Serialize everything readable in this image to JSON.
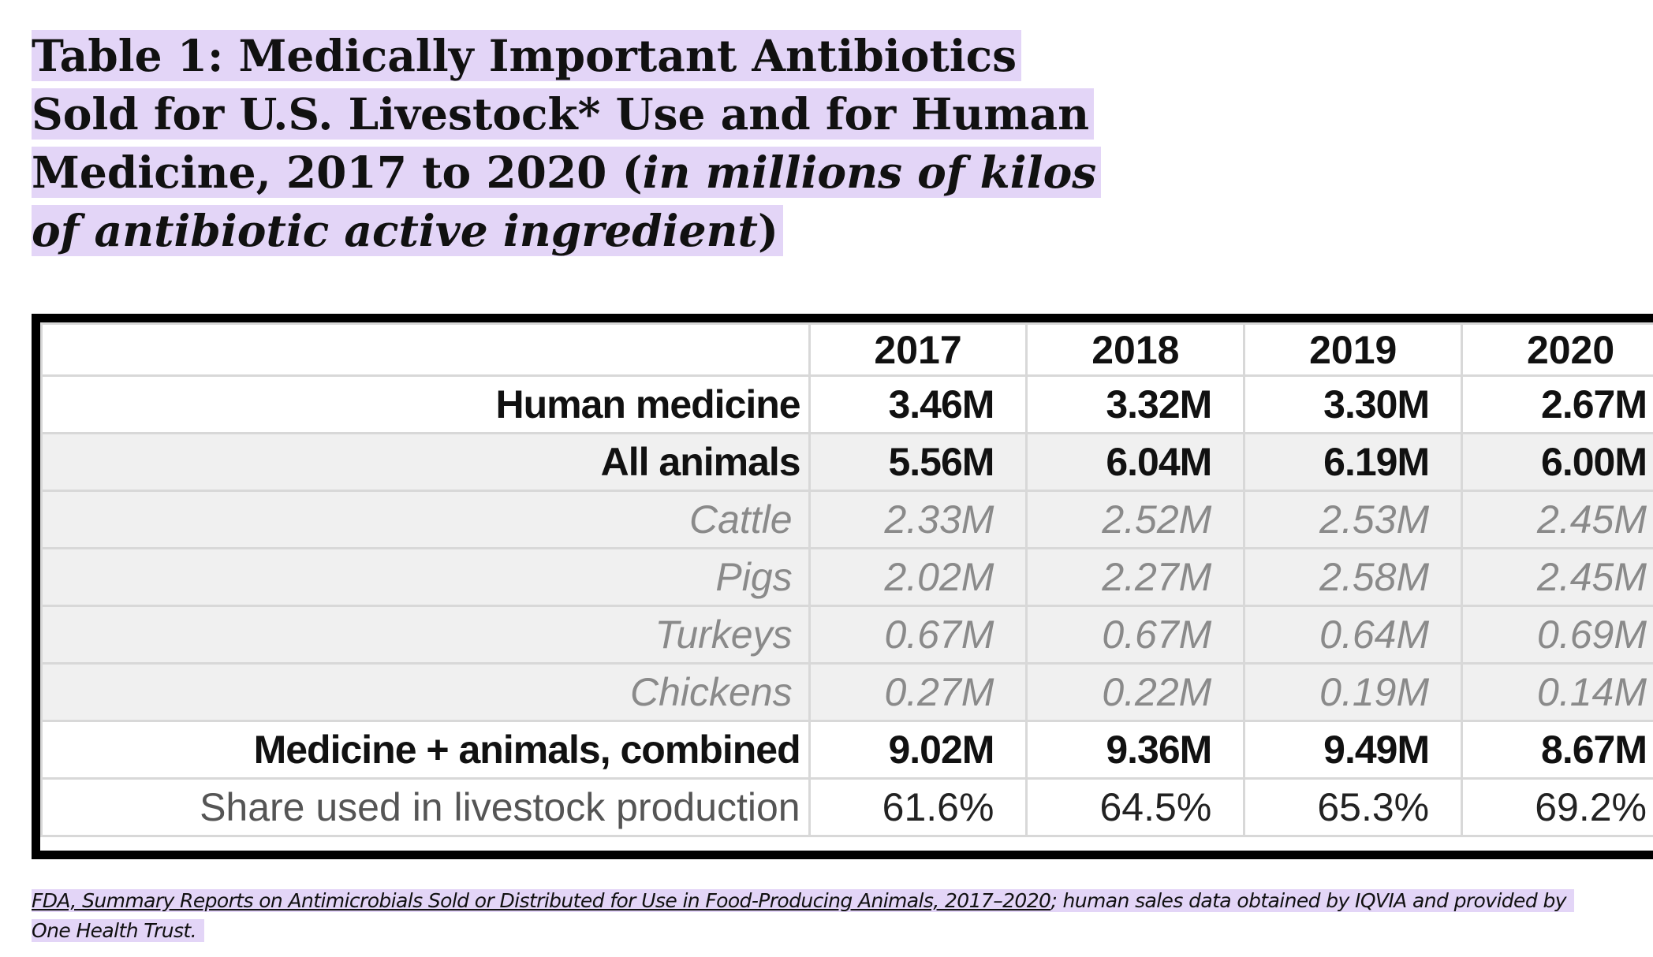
{
  "title": {
    "main": "Table 1: Medically Important Antibiotics Sold for U.S. Livestock* Use and for Human Medicine, 2017 to 2020 (",
    "italic": "in millions of kilos of antibiotic active ingredient",
    "close": ")"
  },
  "table": {
    "headers": [
      "",
      "2017",
      "2018",
      "2019",
      "2020"
    ],
    "rows": [
      {
        "label": "Human medicine",
        "values": [
          "3.46M",
          "3.32M",
          "3.30M",
          "2.67M"
        ]
      },
      {
        "label": "All animals",
        "values": [
          "5.56M",
          "6.04M",
          "6.19M",
          "6.00M"
        ]
      },
      {
        "label": "Cattle",
        "values": [
          "2.33M",
          "2.52M",
          "2.53M",
          "2.45M"
        ]
      },
      {
        "label": "Pigs",
        "values": [
          "2.02M",
          "2.27M",
          "2.58M",
          "2.45M"
        ]
      },
      {
        "label": "Turkeys",
        "values": [
          "0.67M",
          "0.67M",
          "0.64M",
          "0.69M"
        ]
      },
      {
        "label": "Chickens",
        "values": [
          "0.27M",
          "0.22M",
          "0.19M",
          "0.14M"
        ]
      },
      {
        "label": "Medicine + animals, combined",
        "values": [
          "9.02M",
          "9.36M",
          "9.49M",
          "8.67M"
        ]
      },
      {
        "label": "Share used in livestock production",
        "values": [
          "61.6%",
          "64.5%",
          "65.3%",
          "69.2%"
        ]
      }
    ]
  },
  "footer": {
    "link": "FDA, Summary Reports on Antimicrobials Sold or Distributed for Use in Food-Producing Animals, 2017–2020",
    "text": "; human sales data obtained by IQVIA and provided by One Health Trust."
  }
}
